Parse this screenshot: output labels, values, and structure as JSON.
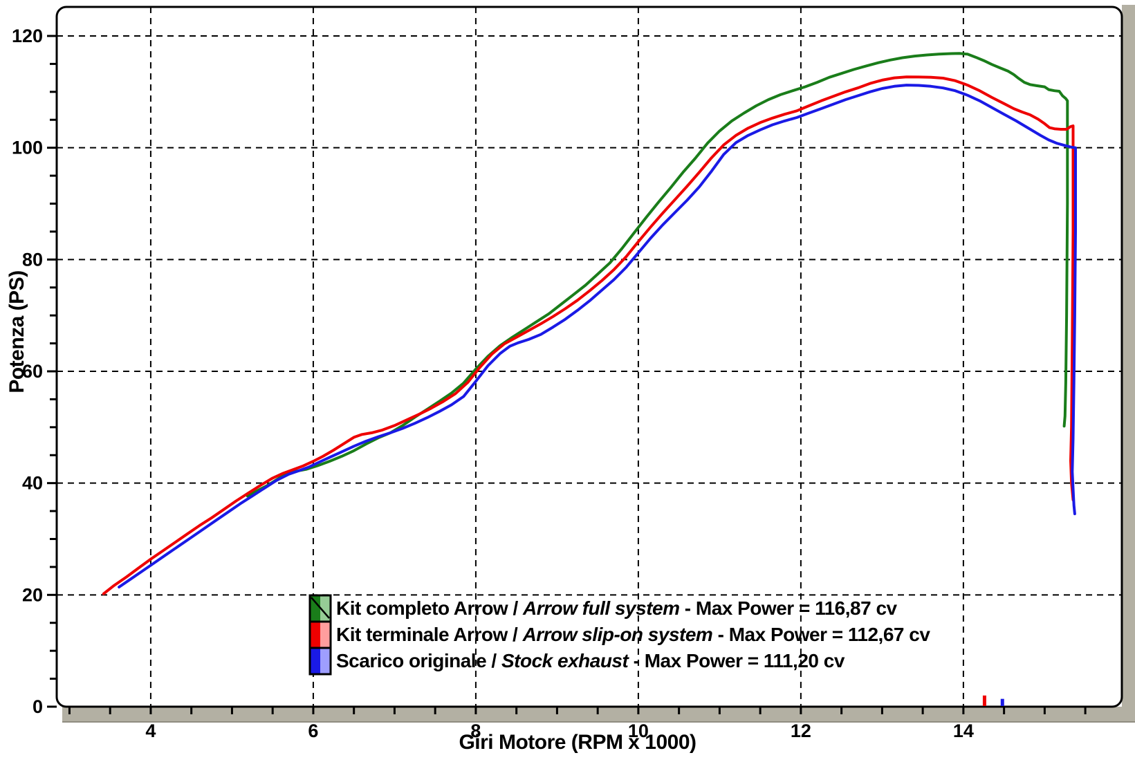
{
  "chart_data": {
    "type": "line",
    "title": "",
    "xlabel": "Giri Motore (RPM x 1000)",
    "ylabel": "Potenza (PS)",
    "xlim": [
      2.843,
      15.95
    ],
    "ylim": [
      0,
      125
    ],
    "x_major_ticks": [
      4,
      6,
      8,
      10,
      12,
      14
    ],
    "x_minor_step": 0.5,
    "x_minor_range": [
      3.0,
      15.5
    ],
    "y_major_ticks": [
      0,
      20,
      40,
      60,
      80,
      100,
      120
    ],
    "y_minor_step": 5,
    "grid": "dashed",
    "legend_position": "bottom-center-inside",
    "series": [
      {
        "name": "Kit completo Arrow",
        "name_en": "Arrow full system",
        "max_power": 116.87,
        "max_power_label": "Max Power = 116,87 cv",
        "color": "#1a7d1a",
        "color_light": "#96cc96",
        "swatch_diagonal": true,
        "points": [
          [
            5.19,
            37.7
          ],
          [
            5.32,
            38.7
          ],
          [
            5.45,
            39.7
          ],
          [
            5.58,
            40.9
          ],
          [
            5.68,
            41.8
          ],
          [
            5.78,
            42.1
          ],
          [
            5.92,
            42.5
          ],
          [
            6.05,
            43.1
          ],
          [
            6.2,
            43.9
          ],
          [
            6.35,
            44.8
          ],
          [
            6.5,
            45.8
          ],
          [
            6.65,
            47.0
          ],
          [
            6.8,
            48.1
          ],
          [
            6.95,
            49.0
          ],
          [
            7.1,
            50.3
          ],
          [
            7.25,
            51.8
          ],
          [
            7.4,
            53.2
          ],
          [
            7.55,
            54.6
          ],
          [
            7.7,
            56.1
          ],
          [
            7.85,
            57.9
          ],
          [
            8.0,
            60.4
          ],
          [
            8.15,
            62.7
          ],
          [
            8.3,
            64.6
          ],
          [
            8.45,
            66.1
          ],
          [
            8.6,
            67.5
          ],
          [
            8.75,
            68.9
          ],
          [
            8.9,
            70.3
          ],
          [
            9.05,
            72.0
          ],
          [
            9.2,
            73.7
          ],
          [
            9.35,
            75.4
          ],
          [
            9.5,
            77.4
          ],
          [
            9.65,
            79.4
          ],
          [
            9.8,
            82.0
          ],
          [
            9.95,
            84.8
          ],
          [
            10.1,
            87.6
          ],
          [
            10.25,
            90.3
          ],
          [
            10.4,
            92.9
          ],
          [
            10.55,
            95.6
          ],
          [
            10.7,
            98.1
          ],
          [
            10.85,
            100.8
          ],
          [
            11.0,
            103.0
          ],
          [
            11.15,
            104.8
          ],
          [
            11.3,
            106.2
          ],
          [
            11.45,
            107.5
          ],
          [
            11.6,
            108.6
          ],
          [
            11.75,
            109.5
          ],
          [
            11.9,
            110.2
          ],
          [
            12.05,
            110.9
          ],
          [
            12.2,
            111.7
          ],
          [
            12.35,
            112.6
          ],
          [
            12.5,
            113.3
          ],
          [
            12.65,
            114.0
          ],
          [
            12.8,
            114.6
          ],
          [
            12.95,
            115.2
          ],
          [
            13.1,
            115.7
          ],
          [
            13.25,
            116.1
          ],
          [
            13.4,
            116.4
          ],
          [
            13.55,
            116.6
          ],
          [
            13.7,
            116.75
          ],
          [
            13.85,
            116.85
          ],
          [
            13.95,
            116.87
          ],
          [
            14.05,
            116.75
          ],
          [
            14.15,
            116.2
          ],
          [
            14.25,
            115.6
          ],
          [
            14.35,
            114.9
          ],
          [
            14.45,
            114.3
          ],
          [
            14.55,
            113.7
          ],
          [
            14.62,
            113.1
          ],
          [
            14.68,
            112.4
          ],
          [
            14.75,
            111.7
          ],
          [
            14.82,
            111.3
          ],
          [
            14.9,
            111.1
          ],
          [
            15.0,
            110.9
          ],
          [
            15.05,
            110.4
          ],
          [
            15.12,
            110.2
          ],
          [
            15.18,
            110.1
          ],
          [
            15.22,
            109.3
          ],
          [
            15.26,
            108.8
          ],
          [
            15.28,
            108.4
          ],
          [
            15.28,
            90
          ],
          [
            15.27,
            70
          ],
          [
            15.26,
            58
          ],
          [
            15.25,
            52
          ],
          [
            15.24,
            50.2
          ]
        ]
      },
      {
        "name": "Kit terminale Arrow",
        "name_en": "Arrow slip-on system",
        "max_power": 112.67,
        "max_power_label": "Max Power = 112,67 cv",
        "color": "#ee0000",
        "color_light": "#ff9e9e",
        "swatch_diagonal": false,
        "points": [
          [
            3.42,
            20.2
          ],
          [
            3.55,
            21.7
          ],
          [
            3.7,
            23.2
          ],
          [
            3.85,
            24.8
          ],
          [
            4.0,
            26.4
          ],
          [
            4.15,
            27.9
          ],
          [
            4.3,
            29.4
          ],
          [
            4.45,
            30.9
          ],
          [
            4.6,
            32.4
          ],
          [
            4.75,
            33.8
          ],
          [
            4.9,
            35.3
          ],
          [
            5.05,
            36.8
          ],
          [
            5.2,
            38.2
          ],
          [
            5.35,
            39.6
          ],
          [
            5.5,
            40.9
          ],
          [
            5.62,
            41.7
          ],
          [
            5.75,
            42.4
          ],
          [
            5.88,
            43.1
          ],
          [
            6.0,
            43.9
          ],
          [
            6.12,
            44.8
          ],
          [
            6.25,
            45.9
          ],
          [
            6.38,
            47.1
          ],
          [
            6.5,
            48.2
          ],
          [
            6.6,
            48.7
          ],
          [
            6.72,
            49.0
          ],
          [
            6.85,
            49.5
          ],
          [
            7.0,
            50.3
          ],
          [
            7.15,
            51.3
          ],
          [
            7.3,
            52.3
          ],
          [
            7.45,
            53.4
          ],
          [
            7.6,
            54.6
          ],
          [
            7.75,
            56.0
          ],
          [
            7.9,
            58.0
          ],
          [
            8.05,
            60.7
          ],
          [
            8.2,
            63.1
          ],
          [
            8.35,
            64.9
          ],
          [
            8.5,
            66.1
          ],
          [
            8.65,
            67.3
          ],
          [
            8.8,
            68.5
          ],
          [
            8.95,
            69.8
          ],
          [
            9.1,
            71.2
          ],
          [
            9.25,
            72.7
          ],
          [
            9.4,
            74.4
          ],
          [
            9.55,
            76.2
          ],
          [
            9.7,
            78.2
          ],
          [
            9.85,
            80.5
          ],
          [
            10.0,
            83.2
          ],
          [
            10.15,
            85.8
          ],
          [
            10.3,
            88.3
          ],
          [
            10.45,
            90.7
          ],
          [
            10.6,
            93.1
          ],
          [
            10.75,
            95.6
          ],
          [
            10.9,
            98.2
          ],
          [
            11.05,
            100.5
          ],
          [
            11.2,
            102.2
          ],
          [
            11.35,
            103.5
          ],
          [
            11.5,
            104.5
          ],
          [
            11.65,
            105.3
          ],
          [
            11.8,
            106.0
          ],
          [
            11.95,
            106.6
          ],
          [
            12.1,
            107.5
          ],
          [
            12.25,
            108.4
          ],
          [
            12.4,
            109.2
          ],
          [
            12.55,
            110.0
          ],
          [
            12.7,
            110.7
          ],
          [
            12.85,
            111.5
          ],
          [
            13.0,
            112.1
          ],
          [
            13.15,
            112.5
          ],
          [
            13.3,
            112.67
          ],
          [
            13.45,
            112.65
          ],
          [
            13.6,
            112.6
          ],
          [
            13.75,
            112.45
          ],
          [
            13.9,
            112.0
          ],
          [
            14.05,
            111.2
          ],
          [
            14.2,
            110.2
          ],
          [
            14.35,
            109.0
          ],
          [
            14.5,
            107.9
          ],
          [
            14.62,
            107.0
          ],
          [
            14.72,
            106.4
          ],
          [
            14.82,
            105.9
          ],
          [
            14.92,
            105.1
          ],
          [
            15.0,
            104.3
          ],
          [
            15.06,
            103.6
          ],
          [
            15.12,
            103.4
          ],
          [
            15.2,
            103.3
          ],
          [
            15.27,
            103.3
          ],
          [
            15.32,
            103.8
          ],
          [
            15.35,
            103.9
          ],
          [
            15.35,
            85
          ],
          [
            15.34,
            65
          ],
          [
            15.33,
            50
          ],
          [
            15.32,
            44
          ],
          [
            15.33,
            40
          ],
          [
            15.35,
            37.0
          ]
        ]
      },
      {
        "name": "Scarico originale",
        "name_en": "Stock exhaust",
        "max_power": 111.2,
        "max_power_label": "Max Power = 111,20 cv",
        "color": "#1a1ae6",
        "color_light": "#9e9eff",
        "swatch_diagonal": false,
        "points": [
          [
            3.61,
            21.4
          ],
          [
            3.75,
            22.8
          ],
          [
            3.9,
            24.3
          ],
          [
            4.05,
            25.8
          ],
          [
            4.2,
            27.3
          ],
          [
            4.35,
            28.8
          ],
          [
            4.5,
            30.3
          ],
          [
            4.65,
            31.8
          ],
          [
            4.8,
            33.3
          ],
          [
            4.95,
            34.8
          ],
          [
            5.1,
            36.3
          ],
          [
            5.25,
            37.7
          ],
          [
            5.4,
            39.1
          ],
          [
            5.55,
            40.5
          ],
          [
            5.7,
            41.6
          ],
          [
            5.82,
            42.2
          ],
          [
            5.95,
            42.9
          ],
          [
            6.08,
            43.8
          ],
          [
            6.2,
            44.6
          ],
          [
            6.35,
            45.6
          ],
          [
            6.5,
            46.6
          ],
          [
            6.65,
            47.5
          ],
          [
            6.8,
            48.3
          ],
          [
            6.95,
            49.0
          ],
          [
            7.1,
            49.8
          ],
          [
            7.25,
            50.7
          ],
          [
            7.4,
            51.7
          ],
          [
            7.55,
            52.8
          ],
          [
            7.7,
            54.0
          ],
          [
            7.85,
            55.5
          ],
          [
            8.0,
            58.2
          ],
          [
            8.15,
            61.0
          ],
          [
            8.3,
            63.2
          ],
          [
            8.42,
            64.5
          ],
          [
            8.52,
            65.1
          ],
          [
            8.65,
            65.7
          ],
          [
            8.8,
            66.6
          ],
          [
            8.95,
            67.9
          ],
          [
            9.1,
            69.3
          ],
          [
            9.25,
            70.9
          ],
          [
            9.4,
            72.6
          ],
          [
            9.55,
            74.5
          ],
          [
            9.7,
            76.4
          ],
          [
            9.85,
            78.6
          ],
          [
            10.0,
            81.2
          ],
          [
            10.15,
            83.8
          ],
          [
            10.3,
            86.2
          ],
          [
            10.45,
            88.4
          ],
          [
            10.6,
            90.6
          ],
          [
            10.75,
            93.0
          ],
          [
            10.9,
            95.8
          ],
          [
            11.05,
            98.8
          ],
          [
            11.2,
            100.9
          ],
          [
            11.35,
            102.2
          ],
          [
            11.5,
            103.2
          ],
          [
            11.65,
            104.1
          ],
          [
            11.8,
            104.8
          ],
          [
            11.95,
            105.4
          ],
          [
            12.1,
            106.2
          ],
          [
            12.25,
            107.0
          ],
          [
            12.4,
            107.8
          ],
          [
            12.55,
            108.6
          ],
          [
            12.7,
            109.3
          ],
          [
            12.85,
            110.0
          ],
          [
            13.0,
            110.6
          ],
          [
            13.15,
            111.0
          ],
          [
            13.3,
            111.2
          ],
          [
            13.45,
            111.15
          ],
          [
            13.6,
            111.0
          ],
          [
            13.75,
            110.7
          ],
          [
            13.9,
            110.2
          ],
          [
            14.05,
            109.4
          ],
          [
            14.2,
            108.4
          ],
          [
            14.35,
            107.2
          ],
          [
            14.5,
            106.0
          ],
          [
            14.65,
            104.8
          ],
          [
            14.8,
            103.5
          ],
          [
            14.95,
            102.2
          ],
          [
            15.05,
            101.4
          ],
          [
            15.15,
            100.8
          ],
          [
            15.25,
            100.4
          ],
          [
            15.33,
            100.1
          ],
          [
            15.38,
            100.0
          ],
          [
            15.38,
            85
          ],
          [
            15.37,
            70
          ],
          [
            15.36,
            58
          ],
          [
            15.35,
            48
          ],
          [
            15.34,
            42
          ],
          [
            15.36,
            36
          ],
          [
            15.37,
            34.5
          ]
        ]
      }
    ],
    "stray_marks": [
      {
        "color": "#ee0000",
        "rpm": 14.26,
        "ps_top": 2.0
      },
      {
        "color": "#1a1ae6",
        "rpm": 14.48,
        "ps_top": 1.4
      }
    ]
  },
  "legend": {
    "separator": " / ",
    "dash": " - "
  },
  "colors": {
    "background": "#ffffff",
    "plot_background": "#ffffff",
    "grid": "#000000",
    "border": "#000000",
    "axis_band": "#b3b0a3",
    "text": "#000000"
  }
}
